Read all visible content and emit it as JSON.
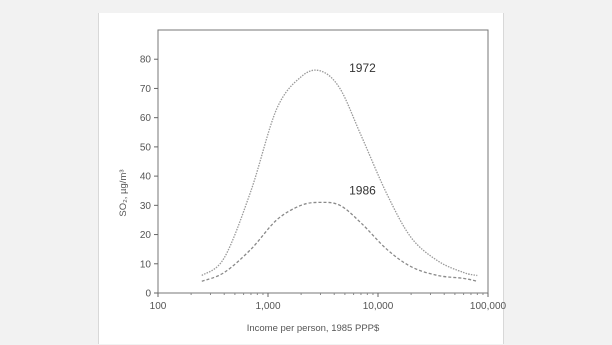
{
  "chart_data": {
    "type": "line",
    "xlabel": "Income per person, 1985 PPP$",
    "ylabel": "SO₂, µg/m³",
    "x_scale": "log",
    "xlim": [
      100,
      100000
    ],
    "ylim": [
      0,
      90
    ],
    "x_ticks": [
      {
        "value": 100,
        "label": "100"
      },
      {
        "value": 1000,
        "label": "1,000"
      },
      {
        "value": 10000,
        "label": "10,000"
      },
      {
        "value": 100000,
        "label": "100,000"
      }
    ],
    "y_ticks": [
      0,
      10,
      20,
      30,
      40,
      50,
      60,
      70,
      80
    ],
    "grid": false,
    "series": [
      {
        "name": "1972",
        "color": "#9a9a9a",
        "x": [
          250,
          400,
          700,
          1200,
          2000,
          3000,
          4500,
          7000,
          12000,
          20000,
          35000,
          60000,
          80000
        ],
        "y": [
          6,
          12,
          35,
          63,
          74,
          76,
          70,
          54,
          34,
          19,
          11,
          7,
          6
        ]
      },
      {
        "name": "1986",
        "color": "#8a8a8a",
        "x": [
          250,
          400,
          700,
          1200,
          2000,
          3000,
          4500,
          7000,
          12000,
          20000,
          35000,
          60000,
          80000
        ],
        "y": [
          4,
          7,
          15,
          25,
          30,
          31,
          30,
          24,
          15,
          9,
          6,
          5,
          4
        ]
      }
    ]
  }
}
